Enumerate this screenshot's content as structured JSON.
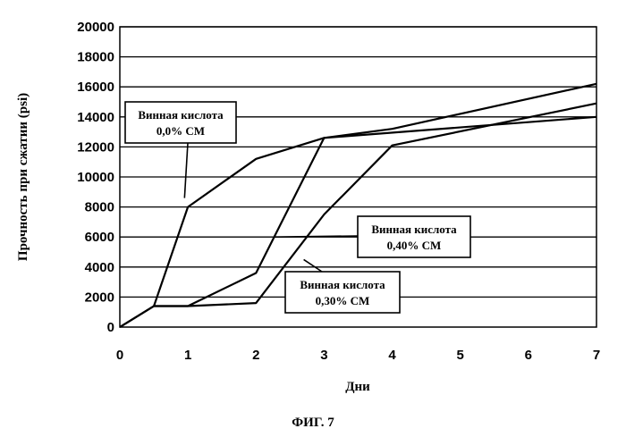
{
  "chart_data": {
    "type": "line",
    "title": "",
    "xlabel": "Дни",
    "ylabel": "Прочность при сжатии (psi)",
    "xlim": [
      0,
      7
    ],
    "ylim": [
      0,
      20000
    ],
    "x_ticks": [
      "0",
      "1",
      "2",
      "3",
      "4",
      "5",
      "6",
      "7"
    ],
    "y_ticks": [
      "0",
      "2000",
      "4000",
      "6000",
      "8000",
      "10000",
      "12000",
      "14000",
      "16000",
      "18000",
      "20000"
    ],
    "grid": "horizontal",
    "legend": "none",
    "series": [
      {
        "name": "Винная кислота 0,0% СМ",
        "points": [
          [
            0,
            0
          ],
          [
            0.5,
            1400
          ],
          [
            1,
            8000
          ],
          [
            2,
            11200
          ],
          [
            3,
            12600
          ],
          [
            7,
            14000
          ]
        ]
      },
      {
        "name": "Винная кислота 0,30% СМ",
        "points": [
          [
            0,
            0
          ],
          [
            0.5,
            1400
          ],
          [
            1,
            1400
          ],
          [
            2,
            3600
          ],
          [
            3,
            12600
          ],
          [
            4,
            13200
          ],
          [
            7,
            16200
          ]
        ]
      },
      {
        "name": "Винная кислота 0,40% СМ",
        "points": [
          [
            0,
            0
          ],
          [
            0.5,
            1400
          ],
          [
            1,
            1400
          ],
          [
            2,
            1600
          ],
          [
            3,
            7500
          ],
          [
            4,
            12100
          ],
          [
            7,
            14900
          ]
        ]
      }
    ],
    "annotations": [
      {
        "id": "c0",
        "line1": "Винная кислота",
        "line2": "0,0% СМ",
        "target": [
          0.95,
          8600
        ]
      },
      {
        "id": "c40",
        "line1": "Винная кислота",
        "line2": "0,40% СМ",
        "target": [
          2.27,
          6000
        ]
      },
      {
        "id": "c30",
        "line1": "Винная кислота",
        "line2": "0,30% СМ",
        "target": [
          2.7,
          4500
        ]
      }
    ]
  },
  "figure_caption": "ФИГ. 7"
}
